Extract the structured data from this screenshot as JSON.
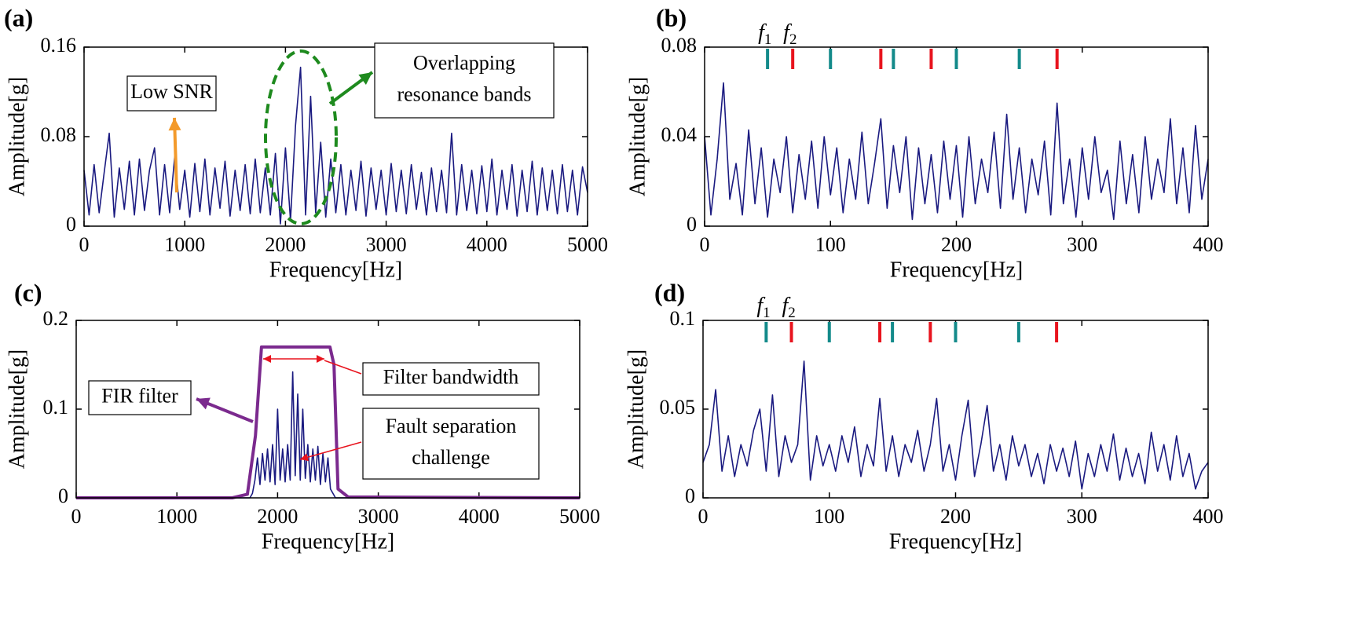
{
  "chart_data": [
    {
      "type": "line",
      "panel_label": "(a)",
      "xlabel": "Frequency[Hz]",
      "ylabel": "Amplitude[g]",
      "xlim": [
        0,
        5000
      ],
      "xticks": [
        0,
        1000,
        2000,
        3000,
        4000,
        5000
      ],
      "ylim": [
        0,
        0.16
      ],
      "yticks": [
        0,
        0.08,
        0.16
      ],
      "series": [
        {
          "color": "#1a1a80",
          "x": [
            0,
            50,
            100,
            150,
            200,
            250,
            300,
            350,
            400,
            450,
            500,
            550,
            600,
            650,
            700,
            750,
            800,
            850,
            900,
            950,
            1000,
            1050,
            1100,
            1150,
            1200,
            1250,
            1300,
            1350,
            1400,
            1450,
            1500,
            1550,
            1600,
            1650,
            1700,
            1750,
            1800,
            1850,
            1900,
            1950,
            2000,
            2050,
            2100,
            2150,
            2200,
            2250,
            2300,
            2350,
            2400,
            2450,
            2500,
            2550,
            2600,
            2650,
            2700,
            2750,
            2800,
            2850,
            2900,
            2950,
            3000,
            3050,
            3100,
            3150,
            3200,
            3250,
            3300,
            3350,
            3400,
            3450,
            3500,
            3550,
            3600,
            3650,
            3700,
            3750,
            3800,
            3850,
            3900,
            3950,
            4000,
            4050,
            4100,
            4150,
            4200,
            4250,
            4300,
            4350,
            4400,
            4450,
            4500,
            4550,
            4600,
            4650,
            4700,
            4750,
            4800,
            4850,
            4900,
            4950,
            5000
          ],
          "values": [
            0.05,
            0.01,
            0.055,
            0.012,
            0.048,
            0.083,
            0.008,
            0.052,
            0.015,
            0.058,
            0.01,
            0.06,
            0.014,
            0.05,
            0.07,
            0.01,
            0.055,
            0.012,
            0.062,
            0.015,
            0.05,
            0.008,
            0.056,
            0.013,
            0.06,
            0.01,
            0.052,
            0.016,
            0.058,
            0.009,
            0.05,
            0.014,
            0.055,
            0.011,
            0.06,
            0.012,
            0.052,
            0.01,
            0.065,
            0.002,
            0.07,
            0.005,
            0.09,
            0.142,
            0.01,
            0.116,
            0.012,
            0.075,
            0.008,
            0.06,
            0.012,
            0.055,
            0.01,
            0.05,
            0.014,
            0.058,
            0.009,
            0.052,
            0.015,
            0.05,
            0.01,
            0.056,
            0.013,
            0.05,
            0.011,
            0.055,
            0.015,
            0.048,
            0.01,
            0.052,
            0.013,
            0.05,
            0.012,
            0.083,
            0.01,
            0.055,
            0.014,
            0.05,
            0.011,
            0.054,
            0.013,
            0.06,
            0.01,
            0.05,
            0.015,
            0.055,
            0.009,
            0.05,
            0.013,
            0.058,
            0.01,
            0.052,
            0.014,
            0.05,
            0.011,
            0.055,
            0.013,
            0.05,
            0.01,
            0.053,
            0.03
          ]
        }
      ],
      "annotations": [
        {
          "lines": [
            "Low SNR"
          ]
        },
        {
          "lines": [
            "Overlapping",
            "resonance bands"
          ]
        }
      ]
    },
    {
      "type": "line",
      "panel_label": "(b)",
      "xlabel": "Frequency[Hz]",
      "ylabel": "Amplitude[g]",
      "xlim": [
        0,
        400
      ],
      "xticks": [
        0,
        100,
        200,
        300,
        400
      ],
      "ylim": [
        0,
        0.08
      ],
      "yticks": [
        0,
        0.04,
        0.08
      ],
      "series": [
        {
          "color": "#1a1a80",
          "x": [
            0,
            5,
            10,
            15,
            20,
            25,
            30,
            35,
            40,
            45,
            50,
            55,
            60,
            65,
            70,
            75,
            80,
            85,
            90,
            95,
            100,
            105,
            110,
            115,
            120,
            125,
            130,
            135,
            140,
            145,
            150,
            155,
            160,
            165,
            170,
            175,
            180,
            185,
            190,
            195,
            200,
            205,
            210,
            215,
            220,
            225,
            230,
            235,
            240,
            245,
            250,
            255,
            260,
            265,
            270,
            275,
            280,
            285,
            290,
            295,
            300,
            305,
            310,
            315,
            320,
            325,
            330,
            335,
            340,
            345,
            350,
            355,
            360,
            365,
            370,
            375,
            380,
            385,
            390,
            395,
            400
          ],
          "values": [
            0.04,
            0.005,
            0.03,
            0.064,
            0.012,
            0.028,
            0.005,
            0.043,
            0.01,
            0.035,
            0.004,
            0.03,
            0.015,
            0.04,
            0.006,
            0.032,
            0.012,
            0.038,
            0.008,
            0.04,
            0.014,
            0.035,
            0.006,
            0.03,
            0.012,
            0.042,
            0.01,
            0.028,
            0.048,
            0.008,
            0.036,
            0.015,
            0.04,
            0.003,
            0.035,
            0.01,
            0.032,
            0.006,
            0.038,
            0.012,
            0.036,
            0.004,
            0.04,
            0.01,
            0.03,
            0.015,
            0.042,
            0.008,
            0.05,
            0.012,
            0.035,
            0.006,
            0.03,
            0.014,
            0.038,
            0.005,
            0.055,
            0.01,
            0.03,
            0.004,
            0.035,
            0.012,
            0.04,
            0.015,
            0.025,
            0.003,
            0.038,
            0.01,
            0.032,
            0.006,
            0.04,
            0.012,
            0.03,
            0.015,
            0.048,
            0.01,
            0.035,
            0.006,
            0.045,
            0.012,
            0.03
          ]
        }
      ],
      "fault_markers": [
        {
          "symbol": "f",
          "subscript": "1",
          "color": "#138a8a",
          "positions": [
            50,
            100,
            150,
            200,
            250
          ]
        },
        {
          "symbol": "f",
          "subscript": "2",
          "color": "#e8141e",
          "positions": [
            70,
            140,
            180,
            280
          ]
        }
      ]
    },
    {
      "type": "line",
      "panel_label": "(c)",
      "xlabel": "Frequency[Hz]",
      "ylabel": "Amplitude[g]",
      "xlim": [
        0,
        5000
      ],
      "xticks": [
        0,
        1000,
        2000,
        3000,
        4000,
        5000
      ],
      "ylim": [
        0,
        0.2
      ],
      "yticks": [
        0,
        0.1,
        0.2
      ],
      "series": [
        {
          "color": "#1a1a80",
          "x": [
            0,
            1700,
            1725,
            1750,
            1775,
            1800,
            1825,
            1850,
            1875,
            1900,
            1925,
            1950,
            1975,
            2000,
            2025,
            2050,
            2075,
            2100,
            2125,
            2150,
            2175,
            2200,
            2225,
            2250,
            2275,
            2300,
            2325,
            2350,
            2375,
            2400,
            2425,
            2450,
            2475,
            2500,
            2525,
            2550,
            2575,
            2600,
            5000
          ],
          "values": [
            0,
            0,
            0,
            0.005,
            0.02,
            0.045,
            0.015,
            0.05,
            0.02,
            0.055,
            0.018,
            0.06,
            0.015,
            0.1,
            0.02,
            0.055,
            0.018,
            0.06,
            0.02,
            0.142,
            0.025,
            0.117,
            0.02,
            0.1,
            0.022,
            0.06,
            0.018,
            0.055,
            0.02,
            0.058,
            0.015,
            0.05,
            0.018,
            0.045,
            0.01,
            0.005,
            0,
            0,
            0
          ]
        },
        {
          "color": "#7b2a8e",
          "x": [
            0,
            1550,
            1700,
            1780,
            1840,
            2520,
            2560,
            2600,
            2700,
            5000
          ],
          "values": [
            0,
            0,
            0.004,
            0.07,
            0.17,
            0.17,
            0.15,
            0.01,
            0.001,
            0
          ]
        }
      ],
      "annotations": [
        {
          "lines": [
            "FIR filter"
          ]
        },
        {
          "lines": [
            "Filter bandwidth"
          ]
        },
        {
          "lines": [
            "Fault separation",
            "challenge"
          ]
        }
      ]
    },
    {
      "type": "line",
      "panel_label": "(d)",
      "xlabel": "Frequency[Hz]",
      "ylabel": "Amplitude[g]",
      "xlim": [
        0,
        400
      ],
      "xticks": [
        0,
        100,
        200,
        300,
        400
      ],
      "ylim": [
        0,
        0.1
      ],
      "yticks": [
        0,
        0.05,
        0.1
      ],
      "series": [
        {
          "color": "#1a1a80",
          "x": [
            0,
            5,
            10,
            15,
            20,
            25,
            30,
            35,
            40,
            45,
            50,
            55,
            60,
            65,
            70,
            75,
            80,
            85,
            90,
            95,
            100,
            105,
            110,
            115,
            120,
            125,
            130,
            135,
            140,
            145,
            150,
            155,
            160,
            165,
            170,
            175,
            180,
            185,
            190,
            195,
            200,
            205,
            210,
            215,
            220,
            225,
            230,
            235,
            240,
            245,
            250,
            255,
            260,
            265,
            270,
            275,
            280,
            285,
            290,
            295,
            300,
            305,
            310,
            315,
            320,
            325,
            330,
            335,
            340,
            345,
            350,
            355,
            360,
            365,
            370,
            375,
            380,
            385,
            390,
            395,
            400
          ],
          "values": [
            0.02,
            0.03,
            0.061,
            0.015,
            0.035,
            0.012,
            0.03,
            0.018,
            0.038,
            0.05,
            0.015,
            0.058,
            0.012,
            0.035,
            0.02,
            0.03,
            0.077,
            0.01,
            0.035,
            0.018,
            0.03,
            0.015,
            0.035,
            0.02,
            0.04,
            0.012,
            0.03,
            0.018,
            0.056,
            0.015,
            0.035,
            0.012,
            0.03,
            0.02,
            0.038,
            0.015,
            0.03,
            0.056,
            0.015,
            0.03,
            0.01,
            0.035,
            0.055,
            0.012,
            0.03,
            0.052,
            0.015,
            0.03,
            0.01,
            0.035,
            0.018,
            0.03,
            0.012,
            0.025,
            0.008,
            0.03,
            0.015,
            0.028,
            0.012,
            0.032,
            0.005,
            0.025,
            0.012,
            0.03,
            0.015,
            0.036,
            0.01,
            0.028,
            0.012,
            0.025,
            0.008,
            0.037,
            0.015,
            0.03,
            0.01,
            0.035,
            0.012,
            0.025,
            0.005,
            0.015,
            0.02
          ]
        }
      ],
      "fault_markers": [
        {
          "symbol": "f",
          "subscript": "1",
          "color": "#138a8a",
          "positions": [
            50,
            100,
            150,
            200,
            250
          ]
        },
        {
          "symbol": "f",
          "subscript": "2",
          "color": "#e8141e",
          "positions": [
            70,
            140,
            180,
            280
          ]
        }
      ]
    }
  ]
}
